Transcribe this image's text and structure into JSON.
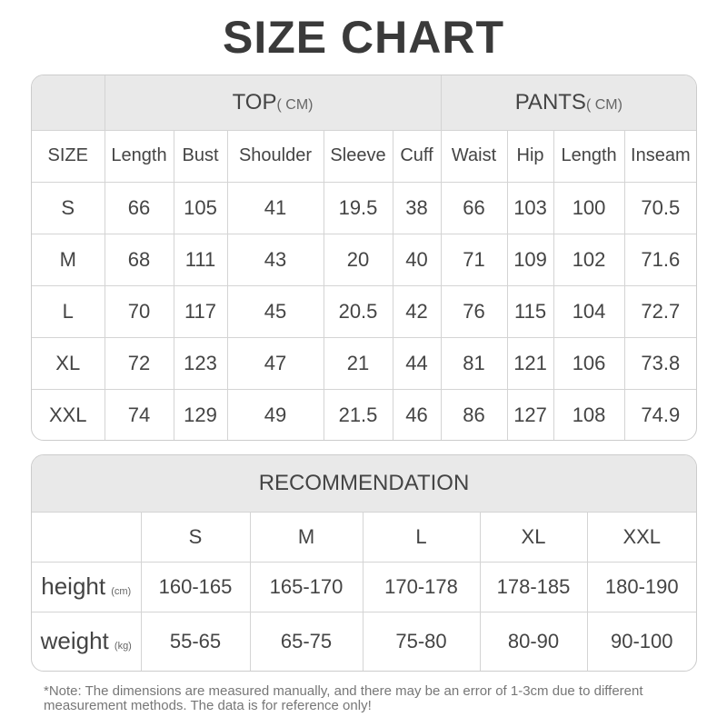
{
  "title": "SIZE CHART",
  "size_table": {
    "groups": [
      {
        "label": "TOP",
        "unit": "( CM)"
      },
      {
        "label": "PANTS",
        "unit": "( CM)"
      }
    ],
    "columns": [
      "SIZE",
      "Length",
      "Bust",
      "Shoulder",
      "Sleeve",
      "Cuff",
      "Waist",
      "Hip",
      "Length",
      "Inseam"
    ],
    "rows": [
      [
        "S",
        "66",
        "105",
        "41",
        "19.5",
        "38",
        "66",
        "103",
        "100",
        "70.5"
      ],
      [
        "M",
        "68",
        "111",
        "43",
        "20",
        "40",
        "71",
        "109",
        "102",
        "71.6"
      ],
      [
        "L",
        "70",
        "117",
        "45",
        "20.5",
        "42",
        "76",
        "115",
        "104",
        "72.7"
      ],
      [
        "XL",
        "72",
        "123",
        "47",
        "21",
        "44",
        "81",
        "121",
        "106",
        "73.8"
      ],
      [
        "XXL",
        "74",
        "129",
        "49",
        "21.5",
        "46",
        "86",
        "127",
        "108",
        "74.9"
      ]
    ]
  },
  "recommendation": {
    "title": "RECOMMENDATION",
    "sizes": [
      "S",
      "M",
      "L",
      "XL",
      "XXL"
    ],
    "rows": [
      {
        "label": "height",
        "unit": "(cm)",
        "values": [
          "160-165",
          "165-170",
          "170-178",
          "178-185",
          "180-190"
        ]
      },
      {
        "label": "weight",
        "unit": "(kg)",
        "values": [
          "55-65",
          "65-75",
          "75-80",
          "80-90",
          "90-100"
        ]
      }
    ]
  },
  "note": "*Note: The dimensions are measured manually, and there may be an error of 1-3cm due to different measurement methods. The data is for reference only!"
}
